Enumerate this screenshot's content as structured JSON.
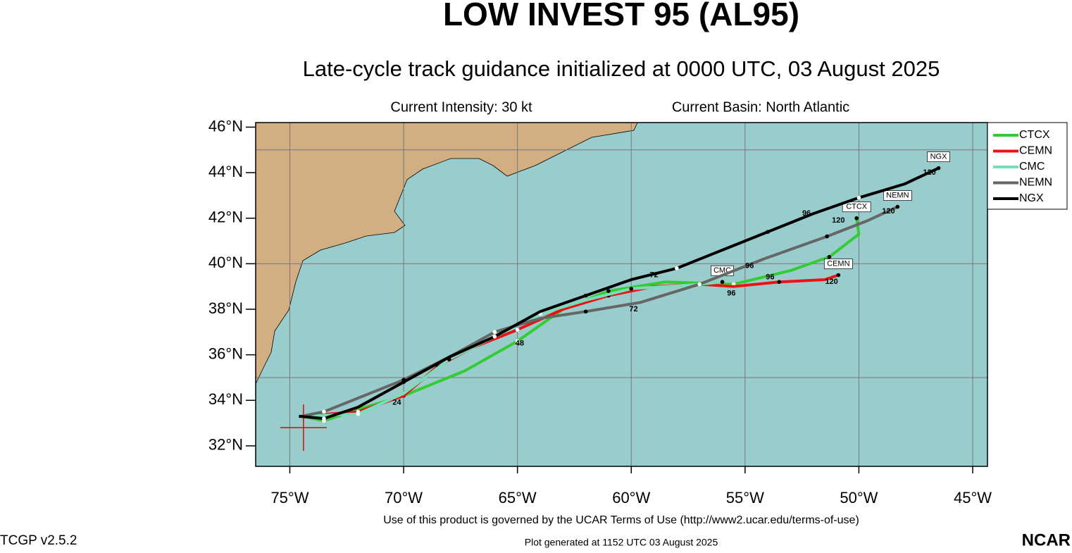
{
  "chart_data": {
    "type": "track-map",
    "title": "LOW INVEST 95 (AL95)",
    "subtitle": "Late-cycle track guidance initialized at 0000 UTC, 03 August 2025",
    "intensity": "Current Intensity: 30 kt",
    "basin": "Current Basin: North Atlantic",
    "xlim": [
      -76.5,
      -44.35
    ],
    "ylim": [
      31.1,
      46.2
    ],
    "xticks": [
      {
        "value": -75,
        "label": "75°W"
      },
      {
        "value": -70,
        "label": "70°W"
      },
      {
        "value": -65,
        "label": "65°W"
      },
      {
        "value": -60,
        "label": "60°W"
      },
      {
        "value": -55,
        "label": "55°W"
      },
      {
        "value": -50,
        "label": "50°W"
      },
      {
        "value": -45,
        "label": "45°W"
      }
    ],
    "yticks": [
      {
        "value": 32,
        "label": "32°N"
      },
      {
        "value": 34,
        "label": "34°N"
      },
      {
        "value": 36,
        "label": "36°N"
      },
      {
        "value": 38,
        "label": "38°N"
      },
      {
        "value": 40,
        "label": "40°N"
      },
      {
        "value": 42,
        "label": "42°N"
      },
      {
        "value": 44,
        "label": "44°N"
      },
      {
        "value": 46,
        "label": "46°N"
      }
    ],
    "ygrid": [
      35,
      40,
      45
    ],
    "grid": true,
    "current_position": [
      -74.4,
      32.8
    ],
    "series": [
      {
        "name": "CTCX",
        "color": "#33cc33",
        "x": [
          -74.4,
          -73.5,
          -72,
          -70,
          -67.3,
          -65,
          -63,
          -61,
          -58.5,
          -55.5,
          -53,
          -51.3,
          -50,
          -50.1
        ],
        "values": [
          33.3,
          33.1,
          33.6,
          34.2,
          35.3,
          36.6,
          38.0,
          38.8,
          39.2,
          39.1,
          39.7,
          40.3,
          41.3,
          42.0
        ],
        "end_label": "CTCX",
        "hour_labels": [
          {
            "x": -64.9,
            "y": 36.5,
            "text": "48"
          },
          {
            "x": -50.9,
            "y": 41.9,
            "text": "120"
          }
        ]
      },
      {
        "name": "CEMN",
        "color": "#ee1111",
        "x": [
          -74.5,
          -72,
          -70,
          -68.5,
          -67,
          -65,
          -63,
          -61,
          -59,
          -57,
          -55.5,
          -53.5,
          -51.5,
          -50.9
        ],
        "values": [
          33.3,
          33.5,
          34.2,
          35.5,
          36.3,
          37.1,
          38.0,
          38.6,
          39.0,
          39.1,
          39.0,
          39.2,
          39.3,
          39.5
        ],
        "end_label": "CEMN",
        "hour_labels": [
          {
            "x": -70.3,
            "y": 33.9,
            "text": "24"
          },
          {
            "x": -53.9,
            "y": 39.4,
            "text": "96"
          },
          {
            "x": -51.2,
            "y": 39.2,
            "text": "120"
          }
        ]
      },
      {
        "name": "CMC",
        "color": "#77ddbb",
        "x": [
          -74.5,
          -72,
          -70,
          -68,
          -66,
          -64,
          -62,
          -60,
          -57,
          -56
        ],
        "values": [
          33.3,
          33.4,
          34.3,
          35.8,
          36.8,
          37.8,
          38.4,
          38.9,
          39.1,
          39.2
        ],
        "end_label": "CMC",
        "hour_labels": [
          {
            "x": -55.6,
            "y": 38.7,
            "text": "96"
          }
        ]
      },
      {
        "name": "NEMN",
        "color": "#666666",
        "x": [
          -74.5,
          -73.5,
          -72,
          -70,
          -68,
          -66,
          -64,
          -62,
          -59.6,
          -57,
          -54.2,
          -51.4,
          -49.6,
          -48.3
        ],
        "values": [
          33.3,
          33.5,
          34.1,
          34.9,
          35.9,
          37.0,
          37.6,
          37.9,
          38.3,
          39.1,
          40.2,
          41.2,
          41.9,
          42.5
        ],
        "end_label": "NEMN",
        "hour_labels": [
          {
            "x": -59.9,
            "y": 38.0,
            "text": "72"
          },
          {
            "x": -54.8,
            "y": 39.9,
            "text": "96"
          },
          {
            "x": -48.7,
            "y": 42.3,
            "text": "120"
          }
        ]
      },
      {
        "name": "NGX",
        "color": "#000000",
        "x": [
          -74.6,
          -73.5,
          -72,
          -70,
          -68,
          -66,
          -64,
          -62,
          -60,
          -58,
          -56,
          -54,
          -52,
          -50,
          -48,
          -46.5
        ],
        "values": [
          33.3,
          33.2,
          33.7,
          34.8,
          35.9,
          36.8,
          37.9,
          38.6,
          39.3,
          39.8,
          40.6,
          41.4,
          42.2,
          42.9,
          43.5,
          44.2
        ],
        "end_label": "NGX",
        "hour_labels": [
          {
            "x": -59.0,
            "y": 39.5,
            "text": "72"
          },
          {
            "x": -52.3,
            "y": 42.2,
            "text": "96"
          },
          {
            "x": -46.9,
            "y": 44.0,
            "text": "120"
          }
        ]
      }
    ],
    "terms": "Use of this product is governed by the UCAR Terms of Use (http://www2.ucar.edu/terms-of-use)",
    "version": "TCGP v2.5.2",
    "generated": "Plot generated at 1152 UTC   03 August 2025",
    "logo": "NCAR"
  }
}
